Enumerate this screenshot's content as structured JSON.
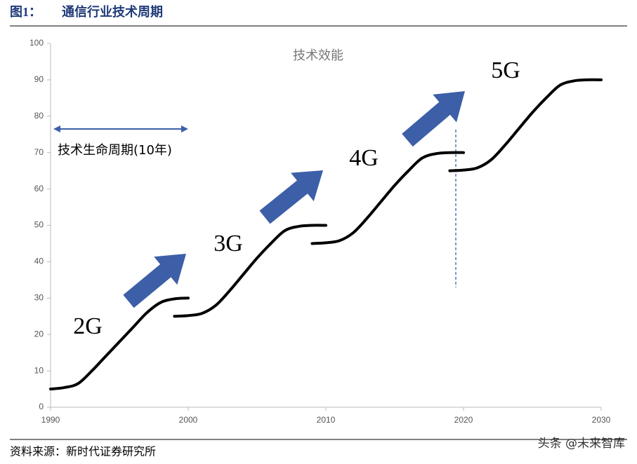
{
  "header": {
    "figure_label": "图1：",
    "title": "通信行业技术周期"
  },
  "chart_data": {
    "type": "line",
    "xlim": [
      1990,
      2030
    ],
    "xticks": [
      1990,
      2000,
      2010,
      2020,
      2030
    ],
    "ylim": [
      0,
      100
    ],
    "yticks": [
      0,
      10,
      20,
      30,
      40,
      50,
      60,
      70,
      80,
      90,
      100
    ],
    "grid": false,
    "y_title": "技术效能",
    "annotations": [
      "2G",
      "3G",
      "4G",
      "5G",
      "技术生命周期(10年)"
    ],
    "series": [
      {
        "color": "#000000",
        "x": [
          1990,
          1991,
          1992,
          1993,
          1994,
          1995,
          1996,
          1997,
          1998,
          1999,
          2000
        ],
        "values": [
          5,
          5.4,
          6.5,
          10,
          14,
          18,
          22,
          26,
          28.8,
          29.8,
          30
        ]
      },
      {
        "color": "#000000",
        "x": [
          1999,
          2000,
          2001,
          2002,
          2003,
          2004,
          2005,
          2006,
          2007,
          2008,
          2009,
          2010
        ],
        "values": [
          25,
          25.2,
          25.8,
          28,
          32,
          36.5,
          41,
          45,
          48.5,
          49.7,
          50,
          50
        ]
      },
      {
        "color": "#000000",
        "x": [
          2009,
          2010,
          2011,
          2012,
          2013,
          2014,
          2015,
          2016,
          2017,
          2018,
          2019,
          2020
        ],
        "values": [
          45,
          45.2,
          45.8,
          48,
          52,
          56.5,
          61,
          65,
          68.5,
          69.7,
          70,
          70
        ]
      },
      {
        "color": "#000000",
        "x": [
          2019,
          2020,
          2021,
          2022,
          2023,
          2024,
          2025,
          2026,
          2027,
          2028,
          2029,
          2030
        ],
        "values": [
          65,
          65.2,
          65.8,
          68,
          72,
          76.5,
          81,
          85,
          88.5,
          89.7,
          90,
          90
        ]
      }
    ]
  },
  "footer": {
    "source": "资料来源：新时代证券研究所",
    "watermark": "头条 @未来智库"
  }
}
